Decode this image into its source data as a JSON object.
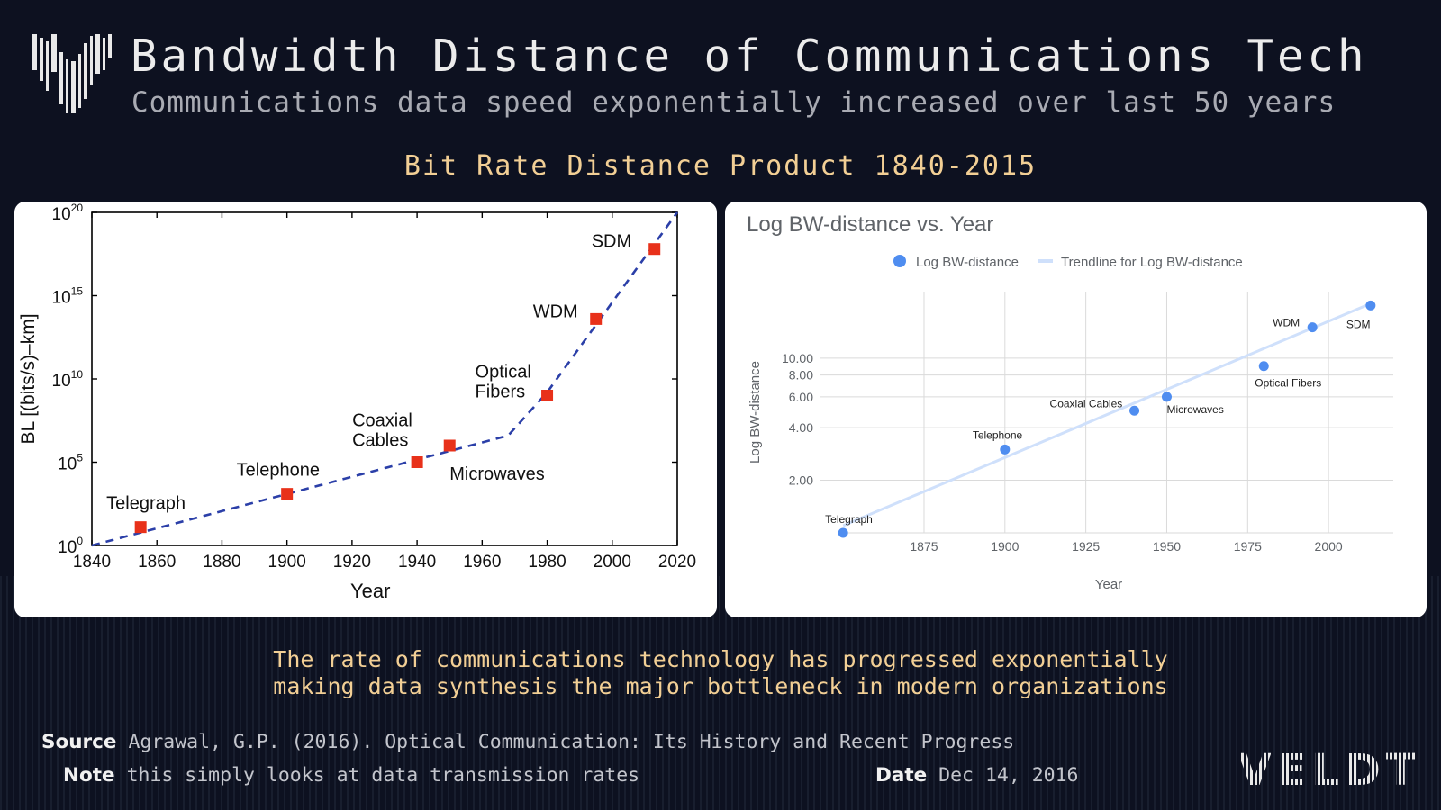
{
  "header": {
    "title": "Bandwidth Distance of Communications Tech",
    "subtitle": "Communications data speed exponentially increased over last 50 years"
  },
  "section_title": "Bit Rate Distance Product 1840-2015",
  "conclusion": {
    "line1": "The rate of communications technology has progressed exponentially",
    "line2": "making data synthesis the major bottleneck in modern organizations"
  },
  "footer": {
    "source_label": "Source",
    "source_text": "Agrawal, G.P. (2016). Optical Communication: Its History and Recent Progress",
    "note_label": "Note",
    "note_text": "this simply looks at data transmission rates",
    "date_label": "Date",
    "date_text": "Dec 14, 2016",
    "brand": "VELDT"
  },
  "colors": {
    "accent": "#f2cf95",
    "marker_red": "#e8311a",
    "line_blue": "#2b3fa8",
    "point_blue": "#4f8df0",
    "trend_blue": "#cfe0fb"
  },
  "chart_data": [
    {
      "type": "scatter",
      "xlabel": "Year",
      "ylabel": "BL [(bits/s)–km]",
      "xlim": [
        1840,
        2020
      ],
      "ylim_log10": [
        0,
        20
      ],
      "x_ticks": [
        1840,
        1860,
        1880,
        1900,
        1920,
        1940,
        1960,
        1980,
        2000,
        2020
      ],
      "y_ticks": [
        {
          "base": "10",
          "exp": "0"
        },
        {
          "base": "10",
          "exp": "5"
        },
        {
          "base": "10",
          "exp": "10"
        },
        {
          "base": "10",
          "exp": "15"
        },
        {
          "base": "10",
          "exp": "20"
        }
      ],
      "points": [
        {
          "label": "Telegraph",
          "x": 1855,
          "log10": 1.1
        },
        {
          "label": "Telephone",
          "x": 1900,
          "log10": 3.1
        },
        {
          "label": "Coaxial Cables",
          "x": 1940,
          "log10": 5.0
        },
        {
          "label": "Microwaves",
          "x": 1950,
          "log10": 6.0
        },
        {
          "label": "Optical Fibers",
          "x": 1980,
          "log10": 9.0
        },
        {
          "label": "WDM",
          "x": 1995,
          "log10": 13.6
        },
        {
          "label": "SDM",
          "x": 2013,
          "log10": 17.8
        }
      ],
      "trend": [
        [
          1840,
          0
        ],
        [
          1968,
          6.6
        ],
        [
          1980,
          9.2
        ],
        [
          2020,
          20
        ]
      ]
    },
    {
      "type": "scatter",
      "title": "Log BW-distance vs. Year",
      "xlabel": "Year",
      "ylabel": "Log BW-distance",
      "legend": [
        "Log BW-distance",
        "Trendline for Log BW-distance"
      ],
      "x_ticks": [
        1875,
        1900,
        1925,
        1950,
        1975,
        2000
      ],
      "y_ticks": [
        "2.00",
        "4.00",
        "6.00",
        "8.00",
        "10.00"
      ],
      "y_scale": "log",
      "xlim": [
        1843,
        2020
      ],
      "ylim": [
        1,
        24
      ],
      "points": [
        {
          "label": "Telegraph",
          "x": 1850,
          "y": 1.0
        },
        {
          "label": "Telephone",
          "x": 1900,
          "y": 3.0
        },
        {
          "label": "Coaxial Cables",
          "x": 1940,
          "y": 5.0
        },
        {
          "label": "Microwaves",
          "x": 1950,
          "y": 6.0
        },
        {
          "label": "Optical Fibers",
          "x": 1980,
          "y": 9.0
        },
        {
          "label": "WDM",
          "x": 1995,
          "y": 15.0
        },
        {
          "label": "SDM",
          "x": 2013,
          "y": 20.0
        }
      ],
      "trendline": [
        [
          1850,
          1.1
        ],
        [
          2013,
          20.5
        ]
      ]
    }
  ]
}
